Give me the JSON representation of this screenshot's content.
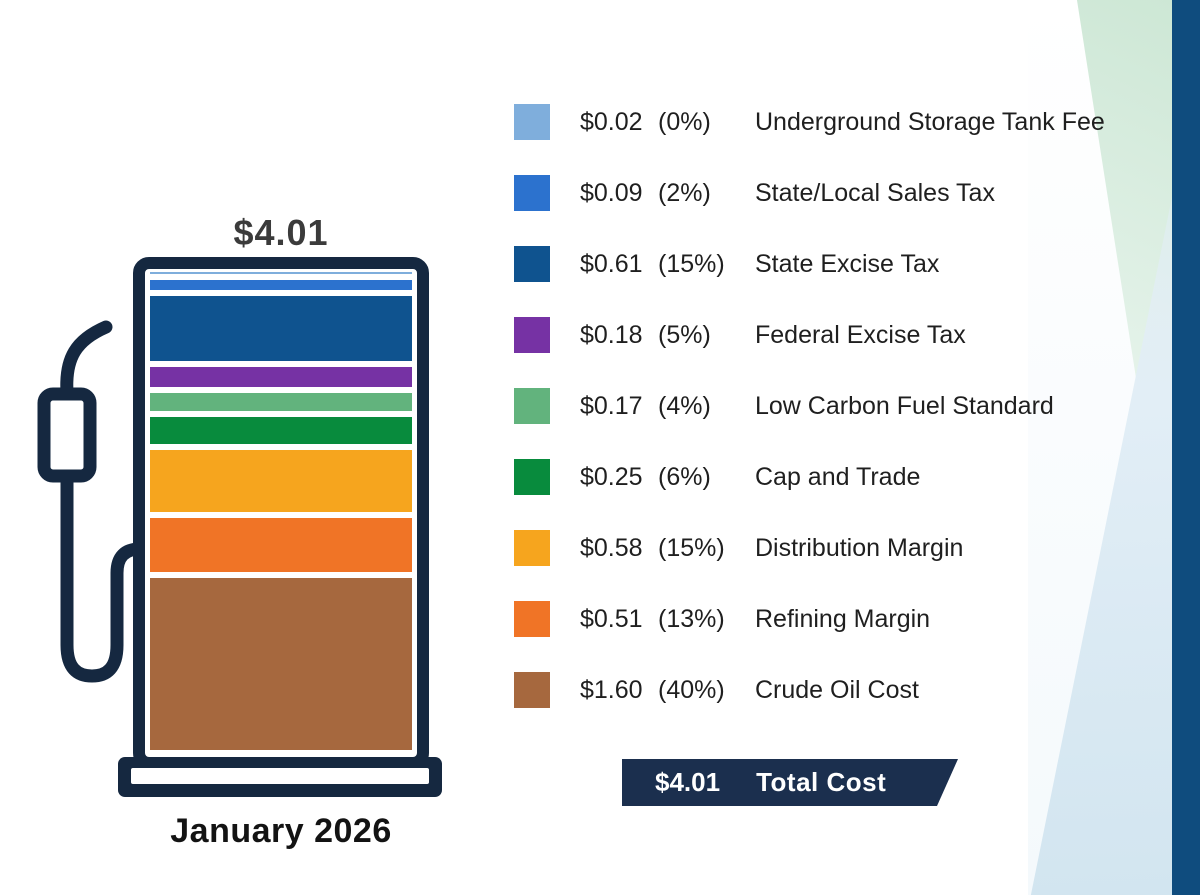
{
  "pump": {
    "total_label": "$4.01",
    "date_label": "January 2026"
  },
  "total_banner": {
    "amount": "$4.01",
    "label": "Total Cost"
  },
  "colors": {
    "navy": "#152840",
    "banner_navy": "#1B2F4E",
    "right_strip": "#0F4C7E",
    "title_text": "#3B3B3B",
    "legend_text": "#1F1F1F"
  },
  "chart_data": {
    "type": "bar",
    "subtype": "stacked-vertical-gas-pump",
    "title": "$4.01",
    "period": "January 2026",
    "total_value": 4.01,
    "total_label": "Total Cost",
    "legend_position": "right",
    "segments_top_to_bottom": [
      {
        "label": "Underground Storage Tank Fee",
        "amount": "$0.02",
        "value": 0.02,
        "percent": "(0%)",
        "color": "#7FAEDC"
      },
      {
        "label": "State/Local Sales Tax",
        "amount": "$0.09",
        "value": 0.09,
        "percent": "(2%)",
        "color": "#2C72CE"
      },
      {
        "label": "State Excise Tax",
        "amount": "$0.61",
        "value": 0.61,
        "percent": "(15%)",
        "color": "#0F538F"
      },
      {
        "label": "Federal Excise Tax",
        "amount": "$0.18",
        "value": 0.18,
        "percent": "(5%)",
        "color": "#7632A4"
      },
      {
        "label": "Low Carbon Fuel Standard",
        "amount": "$0.17",
        "value": 0.17,
        "percent": "(4%)",
        "color": "#62B37D"
      },
      {
        "label": "Cap and Trade",
        "amount": "$0.25",
        "value": 0.25,
        "percent": "(6%)",
        "color": "#088B3D"
      },
      {
        "label": "Distribution Margin",
        "amount": "$0.58",
        "value": 0.58,
        "percent": "(15%)",
        "color": "#F6A51E"
      },
      {
        "label": "Refining Margin",
        "amount": "$0.51",
        "value": 0.51,
        "percent": "(13%)",
        "color": "#F07426"
      },
      {
        "label": "Crude Oil Cost",
        "amount": "$1.60",
        "value": 1.6,
        "percent": "(40%)",
        "color": "#A6683E"
      }
    ]
  }
}
